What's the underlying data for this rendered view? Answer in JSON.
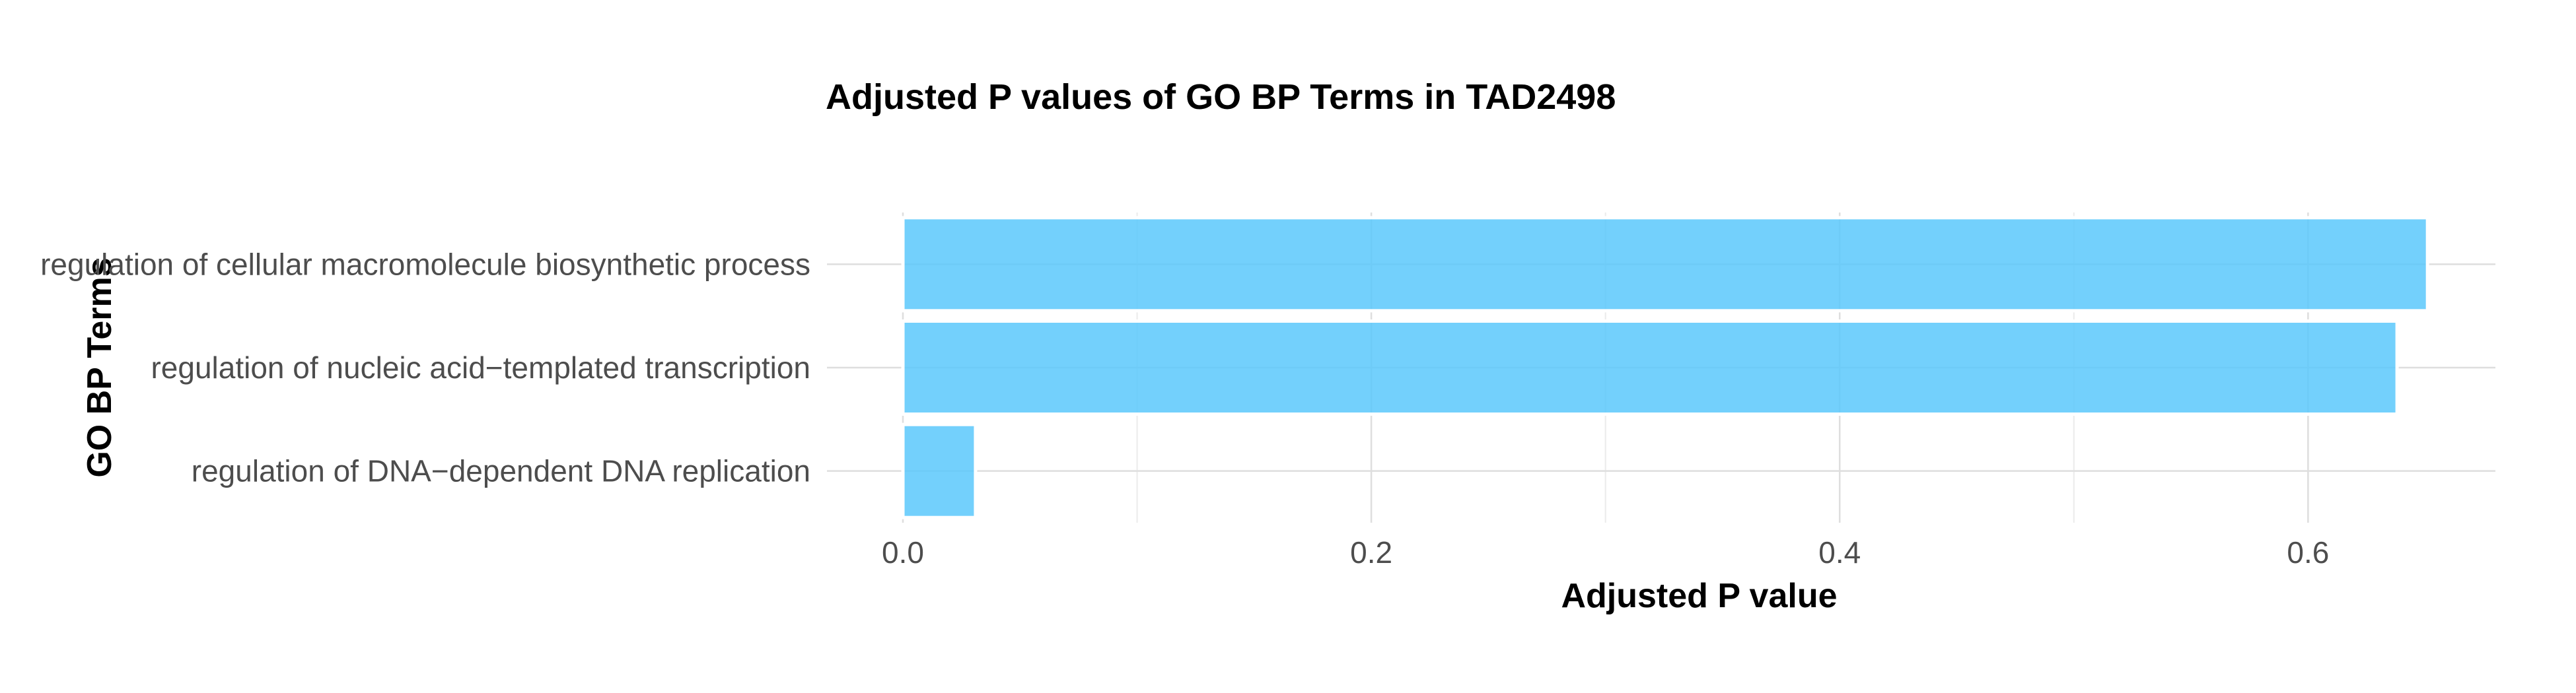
{
  "chart_data": {
    "type": "bar",
    "orientation": "horizontal",
    "title": "Adjusted P values of GO BP Terms in TAD2498",
    "xlabel": "Adjusted P value",
    "ylabel": "GO BP Terms",
    "categories": [
      "regulation of cellular macromolecule biosynthetic process",
      "regulation of nucleic acid−templated transcription",
      "regulation of DNA−dependent DNA replication"
    ],
    "values": [
      0.651,
      0.638,
      0.031
    ],
    "xlim": [
      0,
      0.68
    ],
    "xticks": [
      0.0,
      0.2,
      0.4,
      0.6
    ],
    "xtick_labels": [
      "0.0",
      "0.2",
      "0.4",
      "0.6"
    ],
    "bar_color": "#5BC8FB",
    "grid": true,
    "legend": "none"
  }
}
